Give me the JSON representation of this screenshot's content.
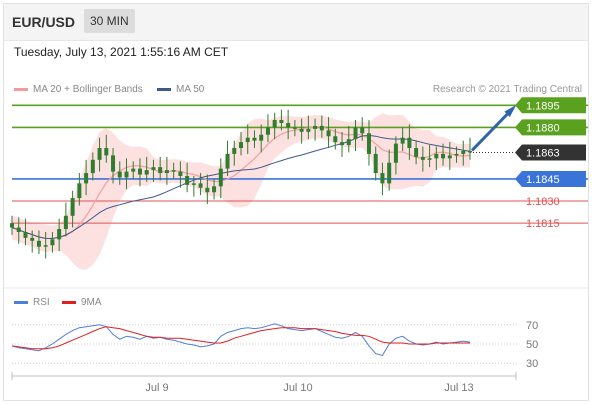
{
  "header": {
    "pair": "EUR/USD",
    "timeframe": "30 MIN",
    "datetime": "Tuesday, July 13, 2021 1:55:16 AM CET"
  },
  "legend": {
    "ma20_label": "MA 20 + Bollinger Bands",
    "ma50_label": "MA 50",
    "credit": "Research © 2021 Trading Central",
    "rsi_label": "RSI",
    "ma9_label": "9MA"
  },
  "colors": {
    "resistance": "#5aa11f",
    "support": "#3b74d9",
    "minor_level": "#e05555",
    "current": "#333333",
    "candle": "#2f7d2f",
    "ma20": "#f0a0a0",
    "ma50": "#3d5a8c",
    "bollinger_fill": "#fde0e0",
    "arrow": "#2f64a8",
    "rsi": "#4f7fd8",
    "ma9": "#e02020"
  },
  "levels": [
    {
      "label": "1.1895",
      "kind": "resistance"
    },
    {
      "label": "1.1880",
      "kind": "resistance"
    },
    {
      "label": "1.1863",
      "kind": "current"
    },
    {
      "label": "1.1845",
      "kind": "support"
    },
    {
      "label": "1.1830",
      "kind": "minor"
    },
    {
      "label": "1.1815",
      "kind": "minor"
    }
  ],
  "chart_data": [
    {
      "type": "candlestick",
      "title": "EUR/USD 30 MIN",
      "x_tick_labels": [
        "Jul 9",
        "Jul 10",
        "Jul 13"
      ],
      "ylim": [
        1.1773,
        1.1902
      ],
      "series": [
        {
          "name": "MA 20 + Bollinger Bands",
          "kind": "ma_with_bands"
        },
        {
          "name": "MA 50",
          "kind": "ma"
        }
      ],
      "close": [
        1.1812,
        1.1809,
        1.1805,
        1.1803,
        1.1799,
        1.18,
        1.1804,
        1.1811,
        1.182,
        1.1832,
        1.1842,
        1.1849,
        1.1858,
        1.1866,
        1.1861,
        1.185,
        1.1846,
        1.185,
        1.1852,
        1.1848,
        1.1851,
        1.1853,
        1.1849,
        1.1851,
        1.185,
        1.1847,
        1.1841,
        1.1842,
        1.1839,
        1.1836,
        1.184,
        1.1852,
        1.1862,
        1.1866,
        1.187,
        1.1873,
        1.1871,
        1.1875,
        1.188,
        1.1885,
        1.1883,
        1.188,
        1.1879,
        1.1877,
        1.1879,
        1.1881,
        1.1878,
        1.1874,
        1.187,
        1.1868,
        1.1872,
        1.188,
        1.1876,
        1.1862,
        1.1849,
        1.1842,
        1.1856,
        1.1869,
        1.1873,
        1.1866,
        1.186,
        1.1858,
        1.1859,
        1.1862,
        1.1859,
        1.1861,
        1.1862,
        1.1864,
        1.1863
      ],
      "levels": [
        1.1895,
        1.188,
        1.1863,
        1.1845,
        1.183,
        1.1815
      ],
      "forecast_arrow": {
        "from": 1.1863,
        "to": 1.1895
      }
    },
    {
      "type": "line",
      "title": "RSI",
      "ylim": [
        25,
        75
      ],
      "y_ticks": [
        70,
        50,
        30
      ],
      "series": [
        {
          "name": "RSI",
          "values": [
            48,
            46,
            45,
            44,
            43,
            46,
            50,
            55,
            60,
            64,
            67,
            68,
            69,
            70,
            68,
            60,
            55,
            58,
            57,
            55,
            58,
            56,
            57,
            55,
            54,
            52,
            50,
            49,
            47,
            48,
            50,
            58,
            62,
            64,
            66,
            67,
            66,
            67,
            69,
            71,
            69,
            66,
            65,
            64,
            65,
            66,
            63,
            60,
            57,
            56,
            58,
            62,
            58,
            48,
            40,
            38,
            50,
            56,
            58,
            53,
            50,
            49,
            50,
            52,
            50,
            51,
            52,
            53,
            52
          ]
        },
        {
          "name": "9MA",
          "values": [
            48,
            47,
            46,
            45,
            45,
            45,
            46,
            48,
            51,
            54,
            57,
            60,
            63,
            66,
            68,
            67,
            66,
            64,
            62,
            60,
            58,
            57,
            57,
            56,
            56,
            56,
            55,
            54,
            53,
            52,
            51,
            51,
            53,
            56,
            58,
            60,
            62,
            64,
            65,
            66,
            67,
            67,
            67,
            66,
            66,
            66,
            65,
            64,
            63,
            61,
            60,
            59,
            59,
            58,
            55,
            52,
            51,
            51,
            51,
            50,
            50,
            50,
            50,
            51,
            51,
            51,
            51,
            51,
            51
          ]
        }
      ]
    }
  ]
}
